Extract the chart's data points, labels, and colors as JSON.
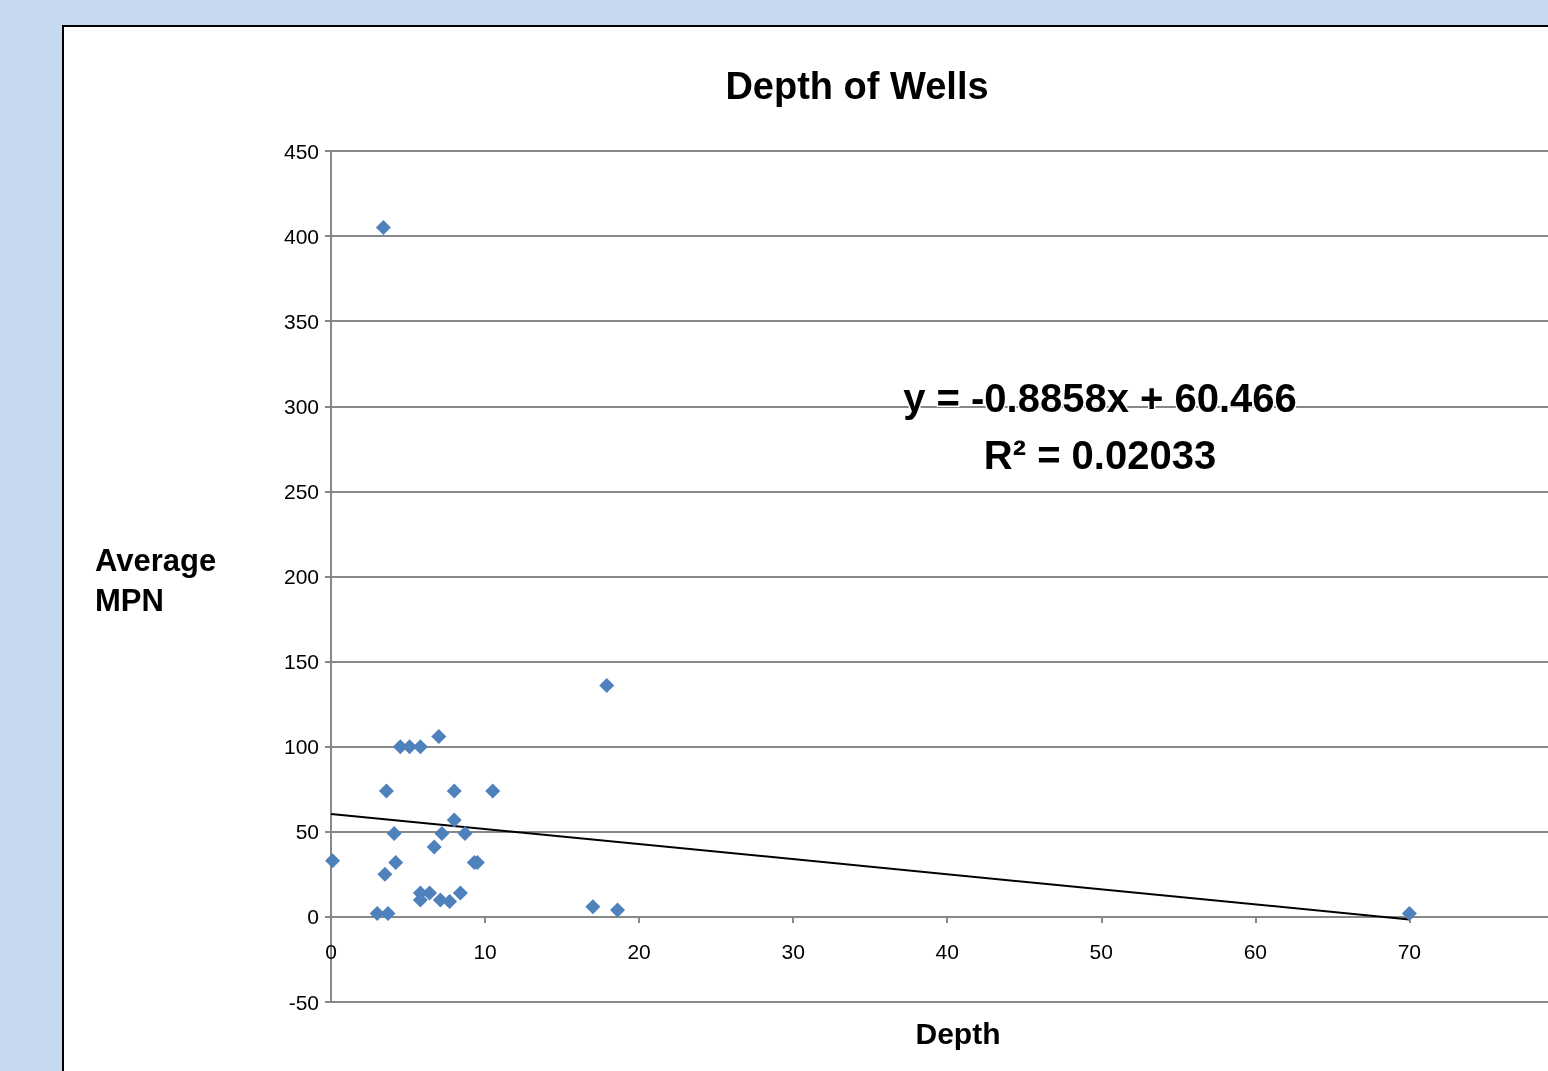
{
  "chart_data": {
    "type": "scatter",
    "title": "Depth of Wells",
    "xlabel": "Depth",
    "ylabel": "Average MPN",
    "xlim": [
      0,
      79
    ],
    "xticks": [
      0,
      10,
      20,
      30,
      40,
      50,
      60,
      70
    ],
    "ylim": [
      -50,
      450
    ],
    "yticks": [
      -50,
      0,
      50,
      100,
      150,
      200,
      250,
      300,
      350,
      400,
      450
    ],
    "grid": "y",
    "marker": "diamond",
    "annotations": [
      "y = -0.8858x + 60.466",
      "R² = 0.02033"
    ],
    "series": [
      {
        "color": "#4f81bd",
        "x": [
          3.4,
          0.1,
          3.0,
          3.7,
          3.6,
          4.1,
          3.5,
          4.2,
          4.5,
          5.1,
          5.8,
          7.0,
          8.0,
          10.5,
          8.0,
          7.2,
          6.7,
          8.7,
          9.3,
          9.5,
          5.8,
          6.4,
          5.8,
          7.1,
          7.7,
          8.4,
          17.0,
          18.6,
          17.9,
          70.0
        ],
        "values": [
          405,
          33,
          2,
          2,
          74,
          49,
          25,
          32,
          100,
          100,
          100,
          106,
          74,
          74,
          57,
          49,
          41,
          49,
          32,
          32,
          14,
          14,
          10,
          10,
          9,
          14,
          6,
          4,
          136,
          2
        ]
      },
      {
        "type": "line",
        "color": "#000000",
        "x": [
          0,
          70
        ],
        "values": [
          60.5,
          -1.5
        ],
        "marker": "none"
      }
    ]
  }
}
